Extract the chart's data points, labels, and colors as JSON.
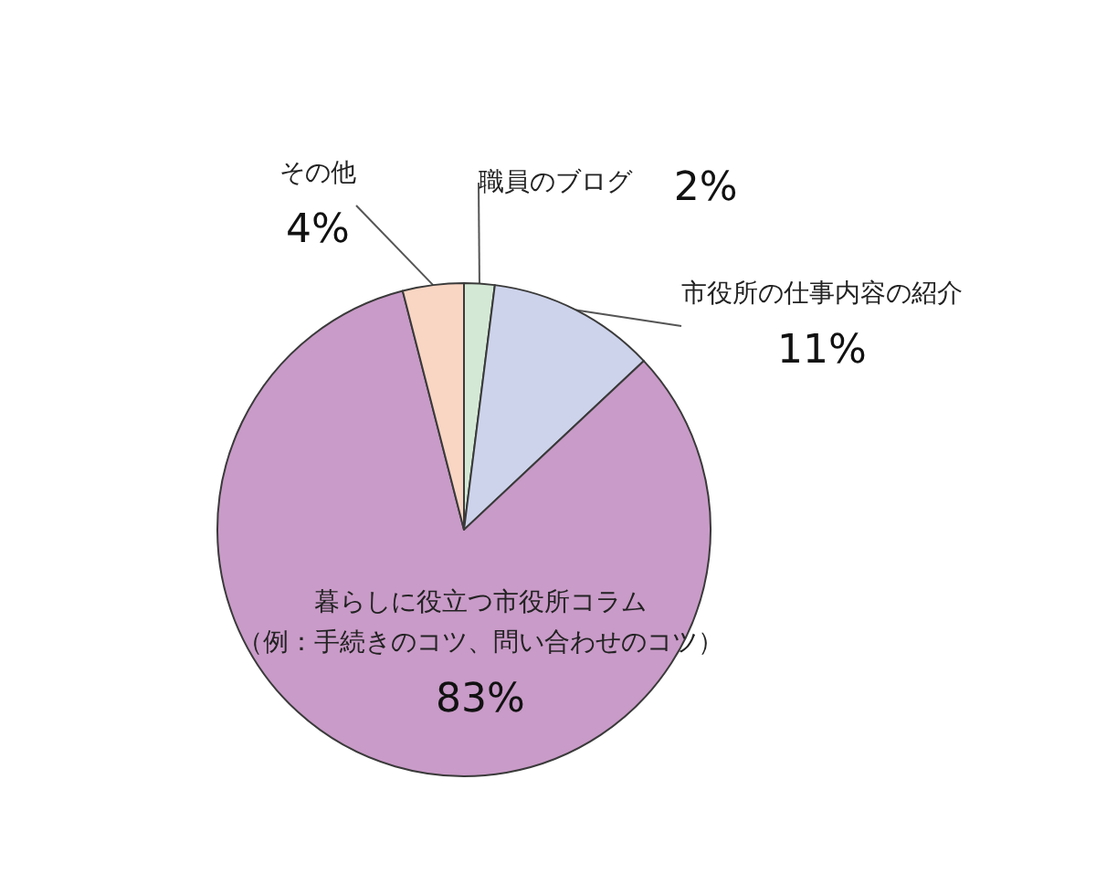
{
  "chart_data": {
    "type": "pie",
    "categories": [
      "職員のブログ",
      "市役所の仕事内容の紹介",
      "暮らしに役立つ市役所コラム（例：手続きのコツ、問い合わせのコツ）",
      "その他"
    ],
    "values": [
      2,
      11,
      83,
      4
    ],
    "colors": [
      "#d4e9d5",
      "#cdd3eb",
      "#c99bc8",
      "#f9d5c3"
    ],
    "value_labels": [
      "2%",
      "11%",
      "83%",
      "4%"
    ]
  }
}
